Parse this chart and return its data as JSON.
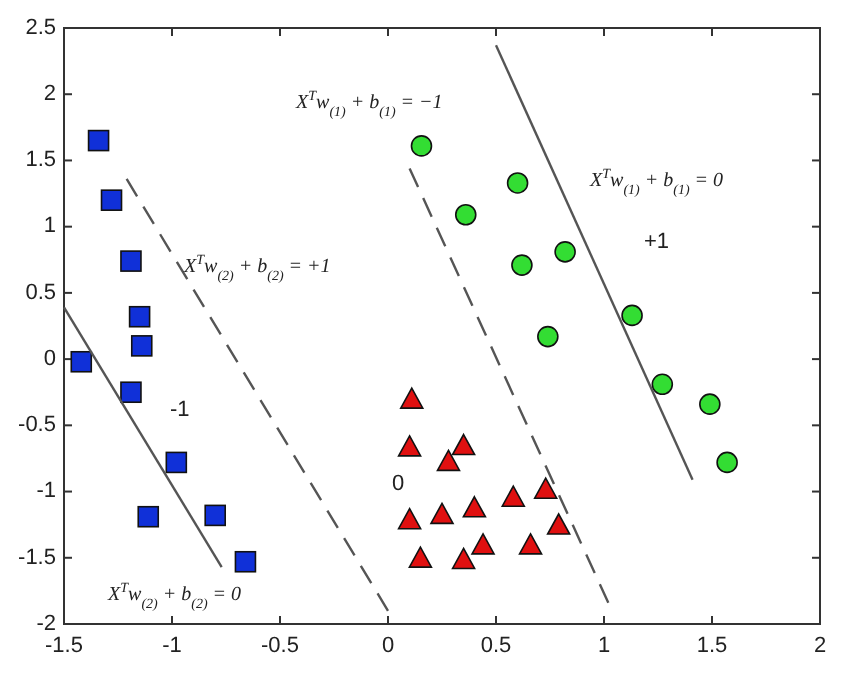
{
  "chart_data": {
    "type": "scatter",
    "xlim": [
      -1.5,
      2
    ],
    "ylim": [
      -2,
      2.5
    ],
    "xticks": [
      -1.5,
      -1,
      -0.5,
      0,
      0.5,
      1,
      1.5,
      2
    ],
    "yticks": [
      -2,
      -1.5,
      -1,
      -0.5,
      0,
      0.5,
      1,
      1.5,
      2,
      2.5
    ],
    "grid": false,
    "series": [
      {
        "marker": "square",
        "color": "#1030d8",
        "x": [
          -1.34,
          -1.28,
          -1.19,
          -1.15,
          -1.14,
          -1.42,
          -1.19,
          -0.98,
          -1.11,
          -0.8,
          -0.66
        ],
        "values": [
          1.65,
          1.2,
          0.74,
          0.32,
          0.1,
          -0.02,
          -0.25,
          -0.78,
          -1.19,
          -1.18,
          -1.53
        ]
      },
      {
        "marker": "circle",
        "color": "#33dd33",
        "x": [
          0.155,
          0.6,
          0.36,
          0.62,
          0.82,
          0.74,
          1.13,
          1.27,
          1.49,
          1.57
        ],
        "values": [
          1.61,
          1.33,
          1.09,
          0.71,
          0.81,
          0.17,
          0.33,
          -0.19,
          -0.34,
          -0.78
        ]
      },
      {
        "marker": "triangle",
        "color": "#e01010",
        "x": [
          0.11,
          0.1,
          0.35,
          0.28,
          0.1,
          0.25,
          0.4,
          0.58,
          0.73,
          0.79,
          0.15,
          0.35,
          0.44,
          0.66
        ],
        "values": [
          -0.31,
          -0.67,
          -0.66,
          -0.78,
          -1.22,
          -1.18,
          -1.13,
          -1.05,
          -0.99,
          -1.26,
          -1.51,
          -1.52,
          -1.41,
          -1.41
        ]
      },
      {
        "type": "line",
        "marker": "none",
        "line_style": "solid",
        "color": "#555555",
        "x": [
          -1.5,
          -0.77
        ],
        "values": [
          0.39,
          -1.57
        ]
      },
      {
        "type": "line",
        "marker": "none",
        "line_style": "dashed",
        "color": "#555555",
        "x": [
          -1.21,
          0
        ],
        "values": [
          1.36,
          -1.9
        ]
      },
      {
        "type": "line",
        "marker": "none",
        "line_style": "dashed",
        "color": "#555555",
        "x": [
          0.1,
          1.02
        ],
        "values": [
          1.44,
          -1.84
        ]
      },
      {
        "type": "line",
        "marker": "none",
        "line_style": "solid",
        "color": "#555555",
        "x": [
          0.5,
          1.41
        ],
        "values": [
          2.37,
          -0.91
        ]
      }
    ],
    "annotations": [
      "X$^{T}$w$_{(1)}$ + b$_{(1)}$ = −1",
      "X$^{T}$w$_{(2)}$ + b$_{(2)}$ = +1",
      "X$^{T}$w$_{(2)}$ + b$_{(2)}$ = 0",
      "X$^{T}$w$_{(1)}$ + b$_{(1)}$ = 0",
      "+1",
      "-1",
      "0"
    ]
  }
}
